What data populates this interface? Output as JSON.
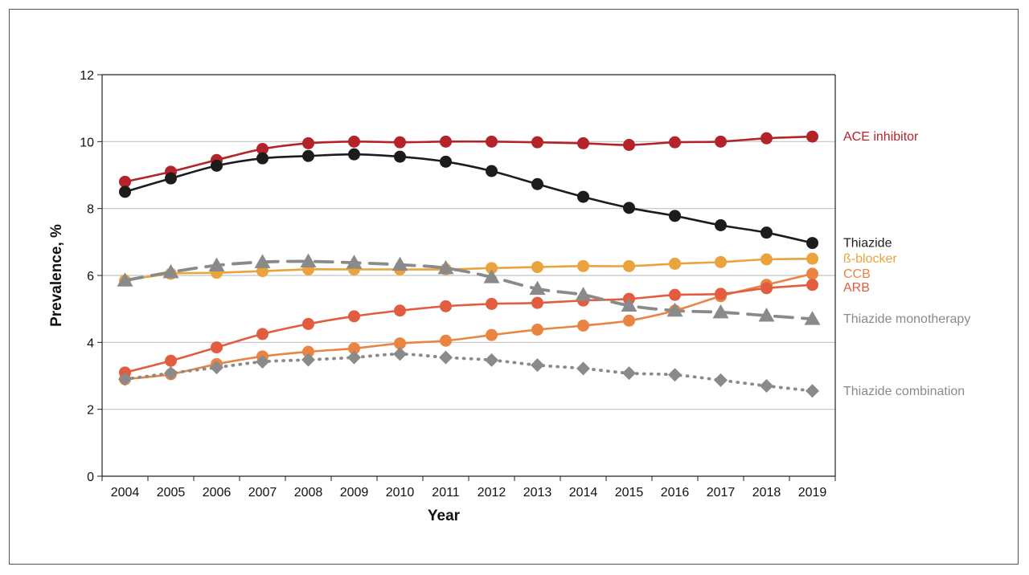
{
  "chart_data": {
    "type": "line",
    "title": "",
    "xlabel": "Year",
    "ylabel": "Prevalence, %",
    "ylim": [
      0,
      12
    ],
    "yticks": [
      0,
      2,
      4,
      6,
      8,
      10,
      12
    ],
    "grid": "horizontal",
    "legend": "right (labels beside line ends)",
    "categories": [
      "2004",
      "2005",
      "2006",
      "2007",
      "2008",
      "2009",
      "2010",
      "2011",
      "2012",
      "2013",
      "2014",
      "2015",
      "2016",
      "2017",
      "2018",
      "2019"
    ],
    "series": [
      {
        "name": "ACE inhibitor",
        "color": "#b5232a",
        "marker": "circle",
        "dash": "solid",
        "values": [
          8.8,
          9.1,
          9.45,
          9.78,
          9.95,
          10.0,
          9.98,
          10.0,
          10.0,
          9.98,
          9.95,
          9.9,
          9.98,
          10.0,
          10.1,
          10.15
        ]
      },
      {
        "name": "Thiazide",
        "color": "#1c1c1c",
        "marker": "circle",
        "dash": "solid",
        "values": [
          8.5,
          8.9,
          9.28,
          9.5,
          9.57,
          9.62,
          9.55,
          9.4,
          9.12,
          8.73,
          8.35,
          8.02,
          7.78,
          7.5,
          7.28,
          6.97
        ]
      },
      {
        "name": "ß-blocker",
        "color": "#eba33d",
        "marker": "circle",
        "dash": "solid",
        "values": [
          5.85,
          6.05,
          6.08,
          6.13,
          6.18,
          6.18,
          6.18,
          6.18,
          6.22,
          6.25,
          6.28,
          6.28,
          6.35,
          6.4,
          6.48,
          6.5
        ]
      },
      {
        "name": "CCB",
        "color": "#e98443",
        "marker": "circle",
        "dash": "solid",
        "values": [
          2.9,
          3.05,
          3.35,
          3.58,
          3.72,
          3.82,
          3.97,
          4.05,
          4.22,
          4.38,
          4.5,
          4.65,
          4.95,
          5.38,
          5.72,
          6.05
        ]
      },
      {
        "name": "ARB",
        "color": "#e25d40",
        "marker": "circle",
        "dash": "solid",
        "values": [
          3.1,
          3.45,
          3.85,
          4.25,
          4.55,
          4.78,
          4.95,
          5.08,
          5.15,
          5.18,
          5.25,
          5.3,
          5.42,
          5.45,
          5.62,
          5.72
        ]
      },
      {
        "name": "Thiazide monotherapy",
        "color": "#8a8a8a",
        "marker": "triangle",
        "dash": "dashed",
        "values": [
          5.85,
          6.1,
          6.3,
          6.4,
          6.42,
          6.38,
          6.32,
          6.22,
          5.95,
          5.6,
          5.42,
          5.1,
          4.95,
          4.9,
          4.8,
          4.7
        ]
      },
      {
        "name": "Thiazide combination",
        "color": "#8a8a8a",
        "marker": "diamond",
        "dash": "dotted",
        "values": [
          2.9,
          3.08,
          3.25,
          3.42,
          3.48,
          3.55,
          3.65,
          3.55,
          3.47,
          3.32,
          3.22,
          3.08,
          3.03,
          2.87,
          2.7,
          2.55
        ]
      }
    ]
  }
}
